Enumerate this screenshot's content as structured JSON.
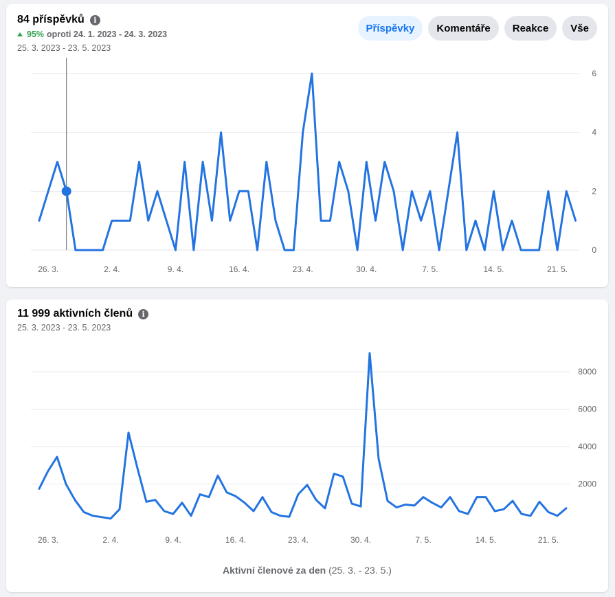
{
  "posts_card": {
    "title": "84 příspěvků",
    "info_icon": "info-icon",
    "change_pct": "95%",
    "change_text": "oproti 24. 1. 2023 - 24. 3. 2023",
    "date_range": "25. 3. 2023 - 23. 5. 2023",
    "buttons": [
      {
        "label": "Příspěvky",
        "active": true
      },
      {
        "label": "Komentáře",
        "active": false
      },
      {
        "label": "Reakce",
        "active": false
      },
      {
        "label": "Vše",
        "active": false
      }
    ]
  },
  "members_card": {
    "title": "11 999 aktivních členů",
    "info_icon": "info-icon",
    "date_range": "25. 3. 2023 - 23. 5. 2023",
    "footer_label": "Aktivní členové za den",
    "footer_range": "(25. 3. - 23. 5.)"
  },
  "colors": {
    "series": "#2374e1",
    "up": "#31a24c",
    "active_button_bg": "#e7f3ff"
  },
  "chart_data": [
    {
      "type": "line",
      "start_date": "2023-03-25",
      "x_tick_labels": [
        "26. 3.",
        "2. 4.",
        "9. 4.",
        "16. 4.",
        "23. 4.",
        "30. 4.",
        "7. 5.",
        "14. 5.",
        "21. 5."
      ],
      "y_ticks": [
        0,
        2,
        4,
        6
      ],
      "ylim": [
        0,
        6
      ],
      "highlighted_point": {
        "date": "2023-03-28",
        "value": 2
      },
      "series": [
        {
          "values": [
            1,
            2,
            3,
            2,
            0,
            0,
            0,
            0,
            1,
            1,
            1,
            3,
            1,
            2,
            1,
            0,
            3,
            0,
            3,
            1,
            4,
            1,
            2,
            2,
            0,
            3,
            1,
            0,
            0,
            4,
            6,
            1,
            1,
            3,
            2,
            0,
            3,
            1,
            3,
            2,
            0,
            2,
            1,
            2,
            0,
            2,
            4,
            0,
            1,
            0,
            2,
            0,
            1,
            0,
            0,
            0,
            2,
            0,
            2,
            1
          ]
        }
      ]
    },
    {
      "type": "line",
      "start_date": "2023-03-25",
      "x_tick_labels": [
        "26. 3.",
        "2. 4.",
        "9. 4.",
        "16. 4.",
        "23. 4.",
        "30. 4.",
        "7. 5.",
        "14. 5.",
        "21. 5."
      ],
      "y_ticks": [
        2000,
        4000,
        6000,
        8000
      ],
      "ylim": [
        0,
        9000
      ],
      "series": [
        {
          "values": [
            1750,
            2700,
            3450,
            2000,
            1150,
            500,
            300,
            230,
            150,
            650,
            4750,
            2850,
            1050,
            1150,
            550,
            400,
            1000,
            300,
            1450,
            1300,
            2450,
            1550,
            1350,
            1000,
            550,
            1300,
            500,
            300,
            250,
            1450,
            1950,
            1150,
            700,
            2550,
            2400,
            950,
            800,
            9000,
            3350,
            1100,
            750,
            900,
            850,
            1300,
            1000,
            750,
            1300,
            550,
            400,
            1300,
            1300,
            550,
            650,
            1100,
            400,
            300,
            1050,
            500,
            300,
            700
          ]
        }
      ]
    }
  ]
}
